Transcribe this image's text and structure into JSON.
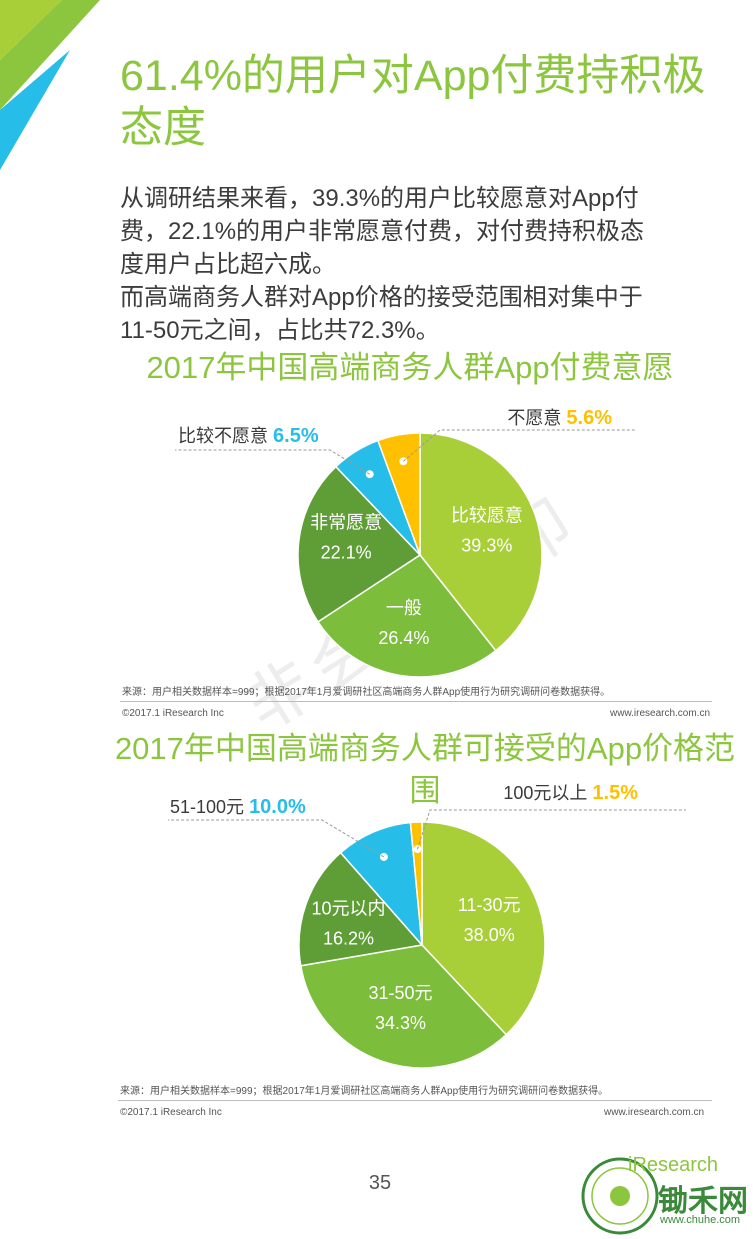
{
  "page": {
    "title": "61.4%的用户对App付费持积极态度",
    "intro_lines": [
      "从调研结果来看，39.3%的用户比较愿意对App付",
      "费，22.1%的用户非常愿意付费，对付费持积极态",
      "度用户占比超六成。",
      "而高端商务人群对App价格的接受范围相对集中于",
      "11-50元之间，占比共72.3%。"
    ],
    "page_number": "35",
    "watermark": "非会员水印",
    "logo_brand": "iResearch",
    "logo_site": "锄禾网",
    "logo_url": "www.chuhe.com"
  },
  "colors": {
    "title_green": "#8cc63f",
    "slice_lime": "#a9cf38",
    "slice_light_green": "#7cbd3b",
    "slice_mid_green": "#5f9e37",
    "slice_blue": "#27bde9",
    "slice_yellow": "#ffc000"
  },
  "chart_data": [
    {
      "type": "pie",
      "title": "2017年中国高端商务人群App付费意愿",
      "slices": [
        {
          "label": "比较愿意",
          "value": 39.3,
          "display": "39.3%",
          "color": "#a9cf38"
        },
        {
          "label": "一般",
          "value": 26.4,
          "display": "26.4%",
          "color": "#7cbd3b"
        },
        {
          "label": "非常愿意",
          "value": 22.1,
          "display": "22.1%",
          "color": "#5f9e37"
        },
        {
          "label": "比较不愿意",
          "value": 6.5,
          "display": "6.5%",
          "color": "#27bde9"
        },
        {
          "label": "不愿意",
          "value": 5.6,
          "display": "5.6%",
          "color": "#ffc000"
        }
      ],
      "source": "来源：用户相关数据样本=999；根据2017年1月爱调研社区高端商务人群App使用行为研究调研问卷数据获得。",
      "copyright": "©2017.1 iResearch Inc",
      "website": "www.iresearch.com.cn"
    },
    {
      "type": "pie",
      "title": "2017年中国高端商务人群可接受的App价格范围",
      "slices": [
        {
          "label": "11-30元",
          "value": 38.0,
          "display": "38.0%",
          "color": "#a9cf38"
        },
        {
          "label": "31-50元",
          "value": 34.3,
          "display": "34.3%",
          "color": "#7cbd3b"
        },
        {
          "label": "10元以内",
          "value": 16.2,
          "display": "16.2%",
          "color": "#5f9e37"
        },
        {
          "label": "51-100元",
          "value": 10.0,
          "display": "10.0%",
          "color": "#27bde9"
        },
        {
          "label": "100元以上",
          "value": 1.5,
          "display": "1.5%",
          "color": "#ffc000"
        }
      ],
      "source": "来源：用户相关数据样本=999；根据2017年1月爱调研社区高端商务人群App使用行为研究调研问卷数据获得。",
      "copyright": "©2017.1 iResearch Inc",
      "website": "www.iresearch.com.cn"
    }
  ]
}
